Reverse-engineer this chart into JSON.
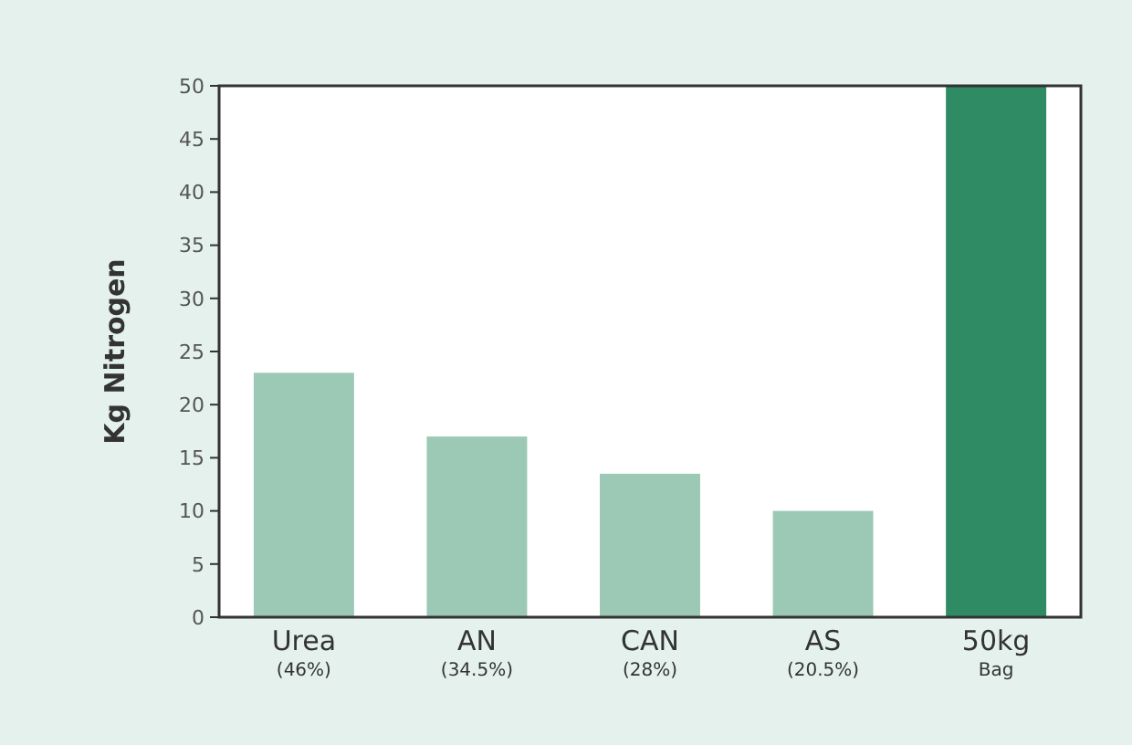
{
  "chart_data": {
    "type": "bar",
    "ylabel": "Kg Nitrogen",
    "categories": [
      "Urea\n(46%)",
      "AN\n(34.5%)",
      "CAN\n(28%)",
      "AS\n(20.5%)",
      "50kg\nBag"
    ],
    "values": [
      23,
      17,
      13.5,
      10,
      50
    ],
    "colors": [
      "#9cc9b5",
      "#9cc9b5",
      "#9cc9b5",
      "#9cc9b5",
      "#2e8b64"
    ],
    "ylim": [
      0,
      50
    ],
    "yticks": [
      0,
      5,
      10,
      15,
      20,
      25,
      30,
      35,
      40,
      45,
      50
    ],
    "grid": false
  }
}
